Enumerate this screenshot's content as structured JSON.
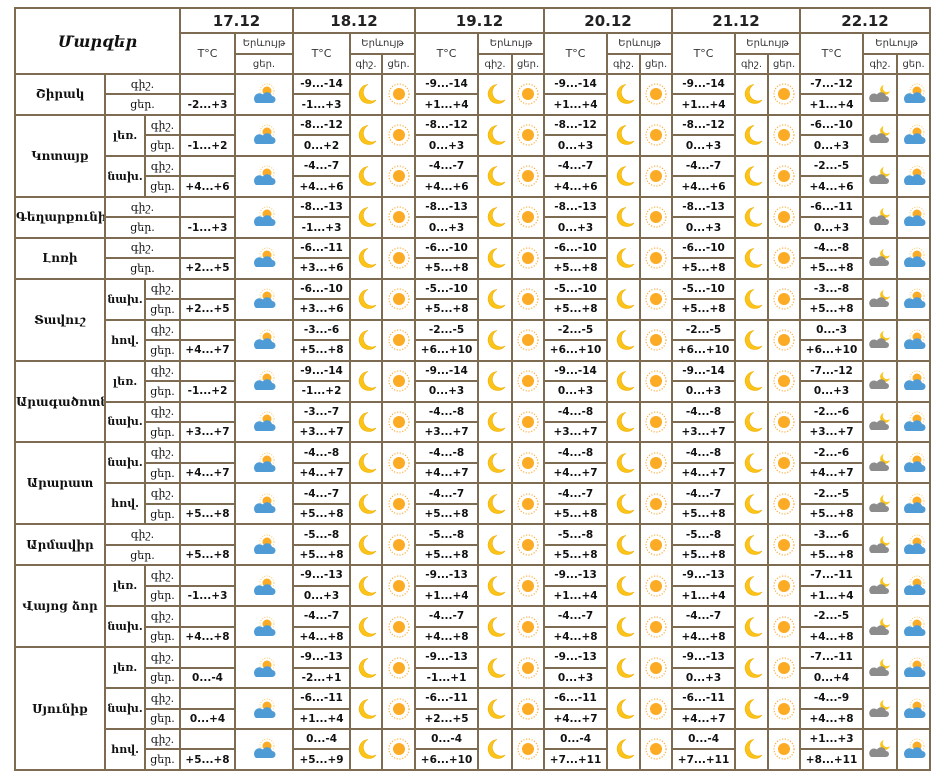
{
  "header": {
    "title": "Մարզեր",
    "temp": "T°C",
    "phenomenon": "Երևույթ",
    "night": "գիշ.",
    "day": "ցեր."
  },
  "dates": [
    {
      "label": "17.12",
      "icons": [
        "partly-cloudy-icon"
      ]
    },
    {
      "label": "18.12",
      "icons": [
        "moon-icon",
        "sun-icon"
      ]
    },
    {
      "label": "19.12",
      "icons": [
        "moon-icon",
        "sun-icon"
      ]
    },
    {
      "label": "20.12",
      "icons": [
        "moon-icon",
        "sun-icon"
      ]
    },
    {
      "label": "21.12",
      "icons": [
        "moon-icon",
        "sun-icon"
      ]
    },
    {
      "label": "22.12",
      "icons": [
        "cloudy-night-icon",
        "partly-cloudy-icon"
      ]
    }
  ],
  "regions": [
    {
      "name": "Շիրակ",
      "parts": [
        {
          "sub": null,
          "t17": "-2...+3",
          "f": [
            [
              "-9...-14",
              "-1...+3"
            ],
            [
              "-9...-14",
              "+1...+4"
            ],
            [
              "-9...-14",
              "+1...+4"
            ],
            [
              "-9...-14",
              "+1...+4"
            ],
            [
              "-7...-12",
              "+1...+4"
            ]
          ]
        }
      ]
    },
    {
      "name": "Կոտայք",
      "parts": [
        {
          "sub": "լեռ.",
          "t17": "-1...+2",
          "f": [
            [
              "-8...-12",
              "0...+2"
            ],
            [
              "-8...-12",
              "0...+3"
            ],
            [
              "-8...-12",
              "0...+3"
            ],
            [
              "-8...-12",
              "0...+3"
            ],
            [
              "-6...-10",
              "0...+3"
            ]
          ]
        },
        {
          "sub": "նախ.",
          "t17": "+4...+6",
          "f": [
            [
              "-4...-7",
              "+4...+6"
            ],
            [
              "-4...-7",
              "+4...+6"
            ],
            [
              "-4...-7",
              "+4...+6"
            ],
            [
              "-4...-7",
              "+4...+6"
            ],
            [
              "-2...-5",
              "+4...+6"
            ]
          ]
        }
      ]
    },
    {
      "name": "Գեղարքունիք",
      "parts": [
        {
          "sub": null,
          "t17": "-1...+3",
          "f": [
            [
              "-8...-13",
              "-1...+3"
            ],
            [
              "-8...-13",
              "0...+3"
            ],
            [
              "-8...-13",
              "0...+3"
            ],
            [
              "-8...-13",
              "0...+3"
            ],
            [
              "-6...-11",
              "0...+3"
            ]
          ]
        }
      ]
    },
    {
      "name": "Լոռի",
      "parts": [
        {
          "sub": null,
          "t17": "+2...+5",
          "f": [
            [
              "-6...-11",
              "+3...+6"
            ],
            [
              "-6...-10",
              "+5...+8"
            ],
            [
              "-6...-10",
              "+5...+8"
            ],
            [
              "-6...-10",
              "+5...+8"
            ],
            [
              "-4...-8",
              "+5...+8"
            ]
          ]
        }
      ]
    },
    {
      "name": "Տավուշ",
      "parts": [
        {
          "sub": "նախ.",
          "t17": "+2...+5",
          "f": [
            [
              "-6...-10",
              "+3...+6"
            ],
            [
              "-5...-10",
              "+5...+8"
            ],
            [
              "-5...-10",
              "+5...+8"
            ],
            [
              "-5...-10",
              "+5...+8"
            ],
            [
              "-3...-8",
              "+5...+8"
            ]
          ]
        },
        {
          "sub": "հով.",
          "t17": "+4...+7",
          "f": [
            [
              "-3...-6",
              "+5...+8"
            ],
            [
              "-2...-5",
              "+6...+10"
            ],
            [
              "-2...-5",
              "+6...+10"
            ],
            [
              "-2...-5",
              "+6...+10"
            ],
            [
              "0...-3",
              "+6...+10"
            ]
          ]
        }
      ]
    },
    {
      "name": "Արագածոտն",
      "parts": [
        {
          "sub": "լեռ.",
          "t17": "-1...+2",
          "f": [
            [
              "-9...-14",
              "-1...+2"
            ],
            [
              "-9...-14",
              "0...+3"
            ],
            [
              "-9...-14",
              "0...+3"
            ],
            [
              "-9...-14",
              "0...+3"
            ],
            [
              "-7...-12",
              "0...+3"
            ]
          ]
        },
        {
          "sub": "նախ.",
          "t17": "+3...+7",
          "f": [
            [
              "-3...-7",
              "+3...+7"
            ],
            [
              "-4...-8",
              "+3...+7"
            ],
            [
              "-4...-8",
              "+3...+7"
            ],
            [
              "-4...-8",
              "+3...+7"
            ],
            [
              "-2...-6",
              "+3...+7"
            ]
          ]
        }
      ]
    },
    {
      "name": "Արարատ",
      "parts": [
        {
          "sub": "նախ.",
          "t17": "+4...+7",
          "f": [
            [
              "-4...-8",
              "+4...+7"
            ],
            [
              "-4...-8",
              "+4...+7"
            ],
            [
              "-4...-8",
              "+4...+7"
            ],
            [
              "-4...-8",
              "+4...+7"
            ],
            [
              "-2...-6",
              "+4...+7"
            ]
          ]
        },
        {
          "sub": "հով.",
          "t17": "+5...+8",
          "f": [
            [
              "-4...-7",
              "+5...+8"
            ],
            [
              "-4...-7",
              "+5...+8"
            ],
            [
              "-4...-7",
              "+5...+8"
            ],
            [
              "-4...-7",
              "+5...+8"
            ],
            [
              "-2...-5",
              "+5...+8"
            ]
          ]
        }
      ]
    },
    {
      "name": "Արմավիր",
      "parts": [
        {
          "sub": null,
          "t17": "+5...+8",
          "f": [
            [
              "-5...-8",
              "+5...+8"
            ],
            [
              "-5...-8",
              "+5...+8"
            ],
            [
              "-5...-8",
              "+5...+8"
            ],
            [
              "-5...-8",
              "+5...+8"
            ],
            [
              "-3...-6",
              "+5...+8"
            ]
          ]
        }
      ]
    },
    {
      "name": "Վայոց ձոր",
      "parts": [
        {
          "sub": "լեռ.",
          "t17": "-1...+3",
          "f": [
            [
              "-9...-13",
              "0...+3"
            ],
            [
              "-9...-13",
              "+1...+4"
            ],
            [
              "-9...-13",
              "+1...+4"
            ],
            [
              "-9...-13",
              "+1...+4"
            ],
            [
              "-7...-11",
              "+1...+4"
            ]
          ]
        },
        {
          "sub": "նախ.",
          "t17": "+4...+8",
          "f": [
            [
              "-4...-7",
              "+4...+8"
            ],
            [
              "-4...-7",
              "+4...+8"
            ],
            [
              "-4...-7",
              "+4...+8"
            ],
            [
              "-4...-7",
              "+4...+8"
            ],
            [
              "-2...-5",
              "+4...+8"
            ]
          ]
        }
      ]
    },
    {
      "name": "Սյունիք",
      "parts": [
        {
          "sub": "լեռ.",
          "t17": "0...-4",
          "f": [
            [
              "-9...-13",
              "-2...+1"
            ],
            [
              "-9...-13",
              "-1...+1"
            ],
            [
              "-9...-13",
              "0...+3"
            ],
            [
              "-9...-13",
              "0...+3"
            ],
            [
              "-7...-11",
              "0...+4"
            ]
          ]
        },
        {
          "sub": "նախ.",
          "t17": "0...+4",
          "f": [
            [
              "-6...-11",
              "+1...+4"
            ],
            [
              "-6...-11",
              "+2...+5"
            ],
            [
              "-6...-11",
              "+4...+7"
            ],
            [
              "-6...-11",
              "+4...+7"
            ],
            [
              "-4...-9",
              "+4...+8"
            ]
          ]
        },
        {
          "sub": "հով.",
          "t17": "+5...+8",
          "f": [
            [
              "0...-4",
              "+5...+9"
            ],
            [
              "0...-4",
              "+6...+10"
            ],
            [
              "0...-4",
              "+7...+11"
            ],
            [
              "0...-4",
              "+7...+11"
            ],
            [
              "+1...+3",
              "+8...+11"
            ]
          ]
        }
      ]
    }
  ]
}
